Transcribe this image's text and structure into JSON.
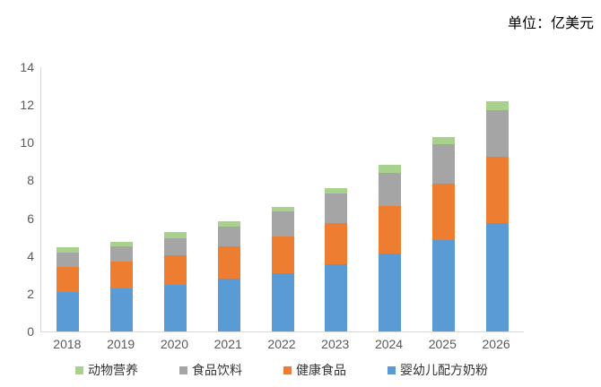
{
  "unit_label": "单位：亿美元",
  "chart_data": {
    "type": "bar",
    "stacked": true,
    "title": "",
    "unit": "亿美元",
    "categories": [
      "2018",
      "2019",
      "2020",
      "2021",
      "2022",
      "2023",
      "2024",
      "2025",
      "2026"
    ],
    "series": [
      {
        "name": "婴幼儿配方奶粉",
        "color": "#5B9BD5",
        "values": [
          2.1,
          2.3,
          2.45,
          2.8,
          3.1,
          3.55,
          4.15,
          4.85,
          5.75
        ]
      },
      {
        "name": "健康食品",
        "color": "#ED7D31",
        "values": [
          1.3,
          1.4,
          1.6,
          1.7,
          1.95,
          2.2,
          2.5,
          3.0,
          3.5
        ]
      },
      {
        "name": "食品饮料",
        "color": "#A5A5A5",
        "values": [
          0.8,
          0.8,
          0.9,
          1.05,
          1.3,
          1.55,
          1.75,
          2.05,
          2.45
        ]
      },
      {
        "name": "动物营养",
        "color": "#A9D18E",
        "values": [
          0.25,
          0.25,
          0.3,
          0.3,
          0.25,
          0.3,
          0.45,
          0.4,
          0.5
        ]
      }
    ],
    "totals": [
      4.45,
      4.75,
      5.25,
      5.85,
      6.6,
      7.6,
      8.85,
      10.3,
      12.2
    ],
    "legend": [
      "动物营养",
      "食品饮料",
      "健康食品",
      "婴幼儿配方奶粉"
    ],
    "legend_position": "bottom",
    "xlabel": "",
    "ylabel": "",
    "ylim": [
      0,
      14
    ],
    "ytick_step": 2,
    "grid": false
  },
  "colors": {
    "background": "#FFFFFF",
    "axis_line": "#D9D9D9",
    "tick_label": "#595959",
    "legend_text": "#333333"
  }
}
